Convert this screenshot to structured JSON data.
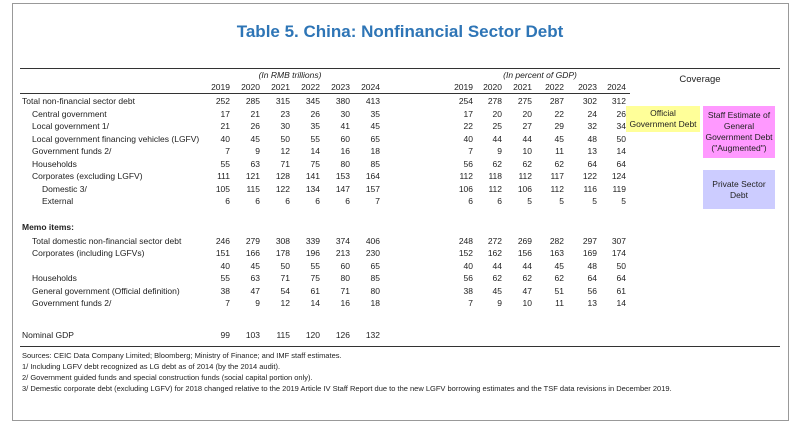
{
  "title": "Table 5. China: Nonfinancial Sector Debt",
  "table": {
    "group_headers": [
      "(In RMB trillions)",
      "(In percent of GDP)"
    ],
    "years_rmb": [
      "2019",
      "2020",
      "2021",
      "2022",
      "2023",
      "2024"
    ],
    "years_pct": [
      "2019",
      "2020",
      "2021",
      "2022",
      "2023",
      "2024"
    ],
    "rows": [
      {
        "label": "Total non-financial sector debt",
        "rmb": [
          252,
          285,
          315,
          345,
          380,
          413
        ],
        "pct": [
          254,
          278,
          275,
          287,
          302,
          312
        ]
      },
      {
        "label": "Central government",
        "rmb": [
          17,
          21,
          23,
          26,
          30,
          35
        ],
        "pct": [
          17,
          20,
          20,
          22,
          24,
          26
        ]
      },
      {
        "label": "Local government 1/",
        "rmb": [
          21,
          26,
          30,
          35,
          41,
          45
        ],
        "pct": [
          22,
          25,
          27,
          29,
          32,
          34
        ]
      },
      {
        "label": "Local government financing vehicles (LGFV)",
        "rmb": [
          40,
          45,
          50,
          55,
          60,
          65
        ],
        "pct": [
          40,
          44,
          44,
          45,
          48,
          50
        ]
      },
      {
        "label": "Government funds 2/",
        "rmb": [
          7,
          9,
          12,
          14,
          16,
          18
        ],
        "pct": [
          7,
          9,
          10,
          11,
          13,
          14
        ]
      },
      {
        "label": "Households",
        "rmb": [
          55,
          63,
          71,
          75,
          80,
          85
        ],
        "pct": [
          56,
          62,
          62,
          62,
          64,
          64
        ]
      },
      {
        "label": "Corporates (excluding LGFV)",
        "rmb": [
          111,
          121,
          128,
          141,
          153,
          164
        ],
        "pct": [
          112,
          118,
          112,
          117,
          122,
          124
        ]
      },
      {
        "label": "Domestic 3/",
        "rmb": [
          105,
          115,
          122,
          134,
          147,
          157
        ],
        "pct": [
          106,
          112,
          106,
          112,
          116,
          119
        ]
      },
      {
        "label": "External",
        "rmb": [
          6,
          6,
          6,
          6,
          6,
          7
        ],
        "pct": [
          6,
          6,
          5,
          5,
          5,
          5
        ]
      },
      {
        "label": "Memo items:"
      },
      {
        "label": "Total domestic non-financial sector debt",
        "rmb": [
          246,
          279,
          308,
          339,
          374,
          406
        ],
        "pct": [
          248,
          272,
          269,
          282,
          297,
          307
        ]
      },
      {
        "label": "Corporates (including LGFVs)",
        "rmb": [
          151,
          166,
          178,
          196,
          213,
          230
        ],
        "pct": [
          152,
          162,
          156,
          163,
          169,
          174
        ]
      },
      {
        "label": null,
        "rmb": [
          40,
          45,
          50,
          55,
          60,
          65
        ],
        "pct": [
          40,
          44,
          44,
          45,
          48,
          50
        ]
      },
      {
        "label": "Households",
        "rmb": [
          55,
          63,
          71,
          75,
          80,
          85
        ],
        "pct": [
          56,
          62,
          62,
          62,
          64,
          64
        ]
      },
      {
        "label": "General government (Official definition)",
        "rmb": [
          38,
          47,
          54,
          61,
          71,
          80
        ],
        "pct": [
          38,
          45,
          47,
          51,
          56,
          61
        ]
      },
      {
        "label": "Government funds 2/",
        "rmb": [
          7,
          9,
          12,
          14,
          16,
          18
        ],
        "pct": [
          7,
          9,
          10,
          11,
          13,
          14
        ]
      },
      {
        "label": "Nominal GDP",
        "rmb": [
          99,
          103,
          115,
          120,
          126,
          132
        ]
      }
    ]
  },
  "coverage": {
    "title": "Coverage",
    "official": "Official Government Debt",
    "augmented": "Staff Estimate of General Government Debt (\"Augmented\")",
    "private": "Private Sector Debt"
  },
  "notes": [
    "Sources: CEIC Data Company Limited; Bloomberg; Ministry of Finance; and IMF staff estimates.",
    "1/ Including LGFV debt recognized as LG debt as of 2014 (by the 2014 audit).",
    "2/ Government guided funds and special construction funds (social capital portion only).",
    "3/ Demestic corporate debt (excluding LGFV) for 2018 changed relative to the 2019 Article IV Staff Report due to the new LGFV borrowing estimates and the TSF data revisions in December 2019."
  ]
}
